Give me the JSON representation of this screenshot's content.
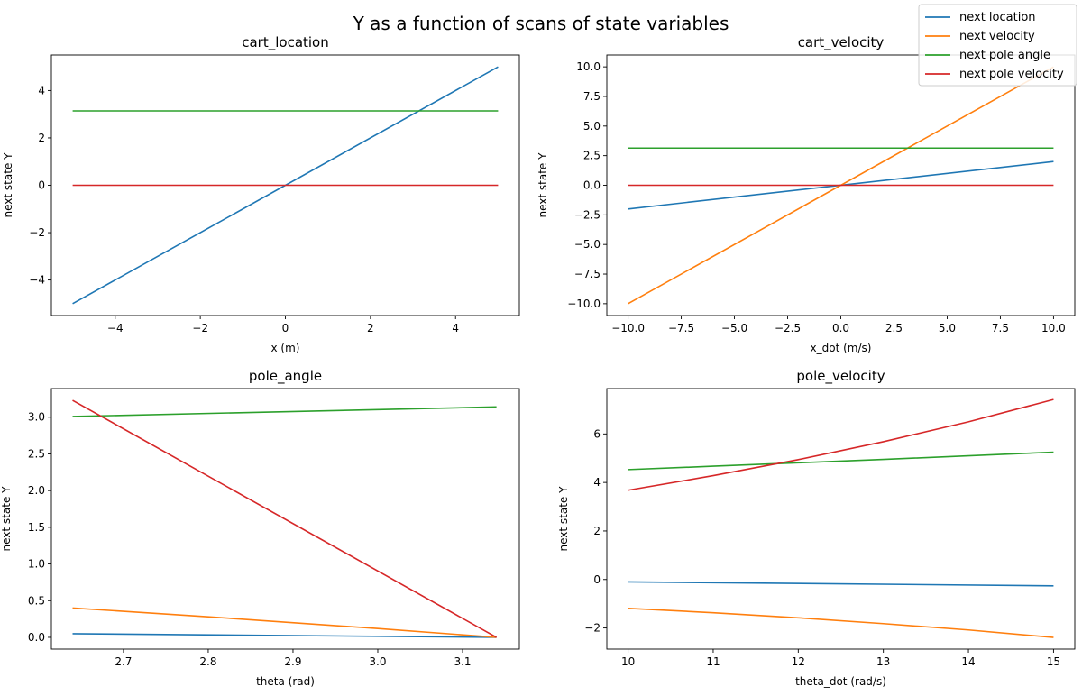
{
  "figure": {
    "title": "Y as a function of scans of state variables",
    "legend": {
      "placement": "top-right",
      "entries": [
        "next location",
        "next velocity",
        "next pole angle",
        "next pole velocity"
      ]
    }
  },
  "colors": {
    "next location": "#1f77b4",
    "next velocity": "#ff7f0e",
    "next pole angle": "#2ca02c",
    "next pole velocity": "#d62728"
  },
  "chart_data": [
    {
      "type": "line",
      "title": "cart_location",
      "xlabel": "x (m)",
      "ylabel": "next state Y",
      "xlim": [
        -5.5,
        5.5
      ],
      "ylim": [
        -5.5,
        5.5
      ],
      "xticks": [
        -4,
        -2,
        0,
        2,
        4
      ],
      "yticks": [
        -4,
        -2,
        0,
        2,
        4
      ],
      "grid": false,
      "series": [
        {
          "name": "next location",
          "x": [
            -5,
            5
          ],
          "y": [
            -5,
            5
          ]
        },
        {
          "name": "next pole angle",
          "x": [
            -5,
            5
          ],
          "y": [
            3.14,
            3.14
          ]
        },
        {
          "name": "next pole velocity",
          "x": [
            -5,
            5
          ],
          "y": [
            0,
            0
          ]
        }
      ]
    },
    {
      "type": "line",
      "title": "cart_velocity",
      "xlabel": "x_dot (m/s)",
      "ylabel": "next state Y",
      "xlim": [
        -11,
        11
      ],
      "ylim": [
        -11,
        11
      ],
      "xticks": [
        -10.0,
        -7.5,
        -5.0,
        -2.5,
        0.0,
        2.5,
        5.0,
        7.5,
        10.0
      ],
      "yticks": [
        -10.0,
        -7.5,
        -5.0,
        -2.5,
        0.0,
        2.5,
        5.0,
        7.5,
        10.0
      ],
      "tick_decimals": 1,
      "grid": false,
      "series": [
        {
          "name": "next location",
          "x": [
            -10,
            10
          ],
          "y": [
            -2,
            2
          ]
        },
        {
          "name": "next velocity",
          "x": [
            -10,
            10
          ],
          "y": [
            -10,
            10
          ]
        },
        {
          "name": "next pole angle",
          "x": [
            -10,
            10
          ],
          "y": [
            3.14,
            3.14
          ]
        },
        {
          "name": "next pole velocity",
          "x": [
            -10,
            10
          ],
          "y": [
            0,
            0
          ]
        }
      ]
    },
    {
      "type": "line",
      "title": "pole_angle",
      "xlabel": "theta (rad)",
      "ylabel": "next state Y",
      "xlim": [
        2.615,
        3.167
      ],
      "ylim": [
        -0.16,
        3.39
      ],
      "xticks": [
        2.7,
        2.8,
        2.9,
        3.0,
        3.1
      ],
      "yticks": [
        0.0,
        0.5,
        1.0,
        1.5,
        2.0,
        2.5,
        3.0
      ],
      "tick_decimals": 1,
      "grid": false,
      "series": [
        {
          "name": "next location",
          "x": [
            2.64,
            3.14
          ],
          "y": [
            0.05,
            0.0
          ]
        },
        {
          "name": "next velocity",
          "x": [
            2.64,
            2.8,
            3.0,
            3.14
          ],
          "y": [
            0.4,
            0.28,
            0.12,
            0.0
          ]
        },
        {
          "name": "next pole angle",
          "x": [
            2.64,
            3.14
          ],
          "y": [
            3.01,
            3.14
          ]
        },
        {
          "name": "next pole velocity",
          "x": [
            2.64,
            3.14
          ],
          "y": [
            3.23,
            0.0
          ]
        }
      ]
    },
    {
      "type": "line",
      "title": "pole_velocity",
      "xlabel": "theta_dot (rad/s)",
      "ylabel": "next state Y",
      "xlim": [
        9.75,
        15.25
      ],
      "ylim": [
        -2.87,
        7.87
      ],
      "xticks": [
        10,
        11,
        12,
        13,
        14,
        15
      ],
      "yticks": [
        -2,
        0,
        2,
        4,
        6
      ],
      "grid": false,
      "series": [
        {
          "name": "next location",
          "x": [
            10,
            15
          ],
          "y": [
            -0.1,
            -0.26
          ]
        },
        {
          "name": "next velocity",
          "x": [
            10,
            11,
            12,
            13,
            14,
            15
          ],
          "y": [
            -1.19,
            -1.37,
            -1.58,
            -1.82,
            -2.08,
            -2.39
          ]
        },
        {
          "name": "next pole angle",
          "x": [
            10,
            11,
            12,
            13,
            14,
            15
          ],
          "y": [
            4.53,
            4.67,
            4.81,
            4.95,
            5.1,
            5.25
          ]
        },
        {
          "name": "next pole velocity",
          "x": [
            10,
            11,
            12,
            13,
            14,
            15
          ],
          "y": [
            3.68,
            4.28,
            4.94,
            5.68,
            6.5,
            7.42
          ]
        }
      ]
    }
  ]
}
